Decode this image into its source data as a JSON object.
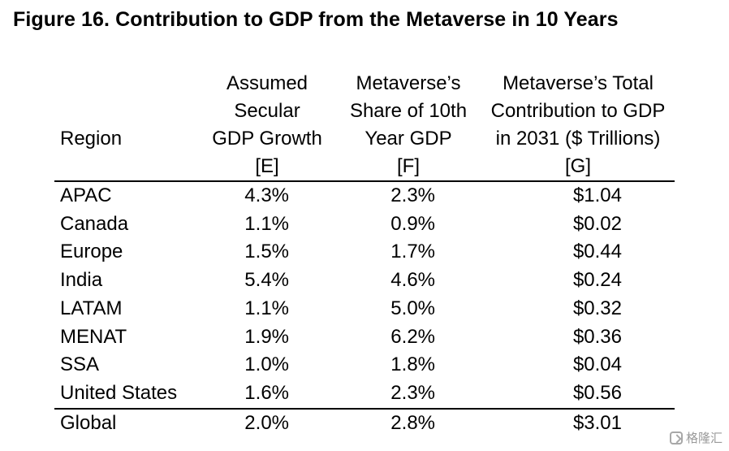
{
  "title": "Figure 16. Contribution to GDP from the Metaverse in 10 Years",
  "table": {
    "headers": {
      "region": "Region",
      "e": [
        "Assumed",
        "Secular",
        "GDP Growth",
        "[E]"
      ],
      "f": [
        "Metaverse’s",
        "Share of 10th",
        "Year GDP",
        "[F]"
      ],
      "g": [
        "Metaverse’s Total",
        "Contribution to GDP",
        "in 2031 ($ Trillions)",
        "[G]"
      ]
    },
    "rows": [
      {
        "region": "APAC",
        "e": "4.3%",
        "f": "2.3%",
        "g": "$1.04"
      },
      {
        "region": "Canada",
        "e": "1.1%",
        "f": "0.9%",
        "g": "$0.02"
      },
      {
        "region": "Europe",
        "e": "1.5%",
        "f": "1.7%",
        "g": "$0.44"
      },
      {
        "region": "India",
        "e": "5.4%",
        "f": "4.6%",
        "g": "$0.24"
      },
      {
        "region": "LATAM",
        "e": "1.1%",
        "f": "5.0%",
        "g": "$0.32"
      },
      {
        "region": "MENAT",
        "e": "1.9%",
        "f": "6.2%",
        "g": "$0.36"
      },
      {
        "region": "SSA",
        "e": "1.0%",
        "f": "1.8%",
        "g": "$0.04"
      },
      {
        "region": "United States",
        "e": "1.6%",
        "f": "2.3%",
        "g": "$0.56"
      }
    ],
    "total": {
      "region": "Global",
      "e": "2.0%",
      "f": "2.8%",
      "g": "$3.01"
    }
  },
  "watermark": {
    "text": "格隆汇",
    "icon": "gelonghui-logo-icon"
  }
}
